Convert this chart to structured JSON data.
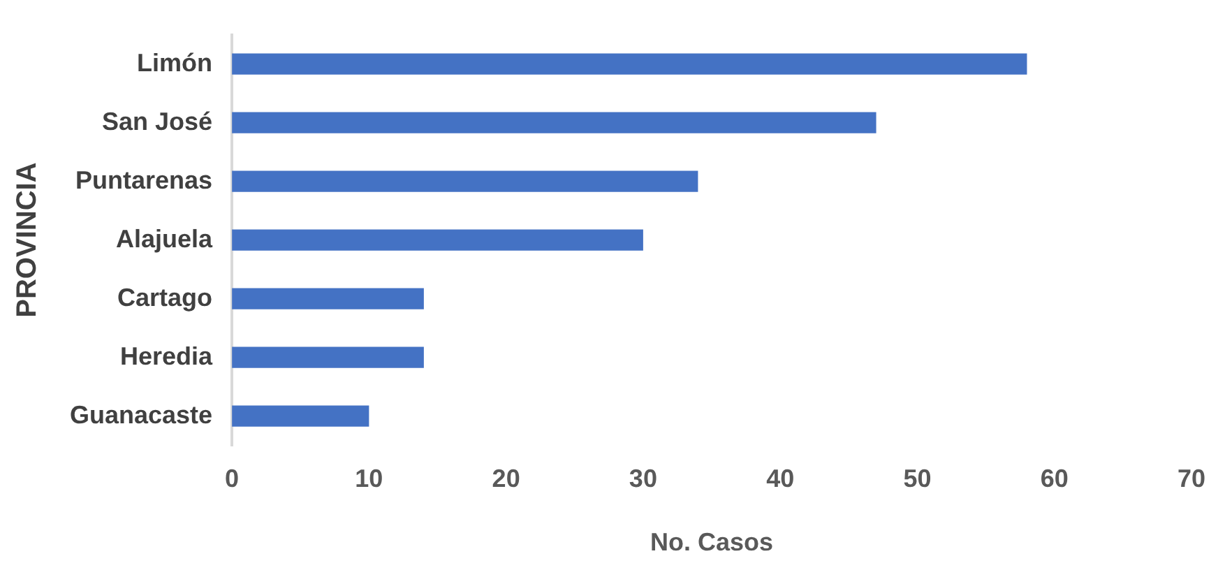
{
  "chart_data": {
    "type": "bar",
    "orientation": "horizontal",
    "categories": [
      "Limón",
      "San José",
      "Puntarenas",
      "Alajuela",
      "Cartago",
      "Heredia",
      "Guanacaste"
    ],
    "values": [
      58,
      47,
      34,
      30,
      14,
      14,
      10
    ],
    "color": "#4472c4",
    "xlim": [
      0,
      70
    ],
    "xticks": [
      0,
      10,
      20,
      30,
      40,
      50,
      60,
      70
    ],
    "xlabel": "No. Casos",
    "ylabel": "PROVINCIA",
    "grid": false,
    "legend": false
  }
}
